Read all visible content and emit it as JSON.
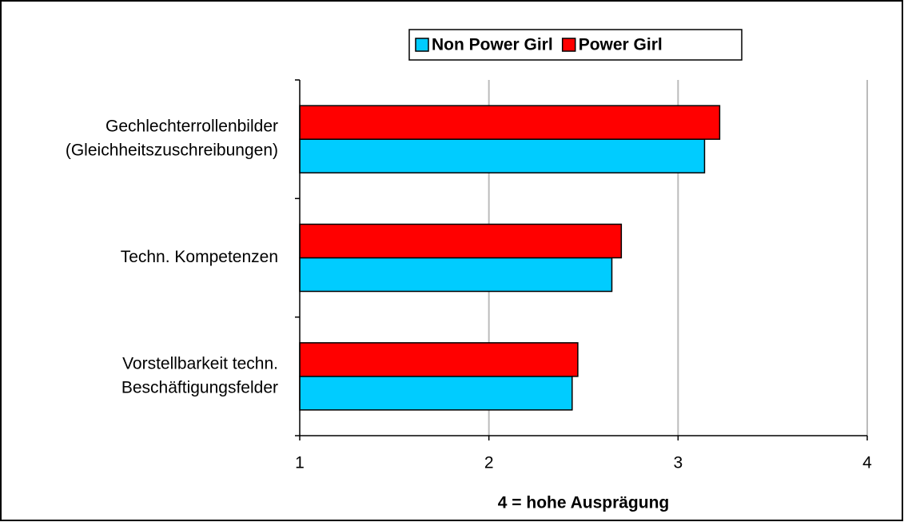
{
  "chart_data": {
    "type": "bar",
    "orientation": "horizontal",
    "xlabel": "4 = hohe Ausprägung",
    "categories": [
      [
        "Gechlechterrollenbilder",
        "(Gleichheitszuschreibungen)"
      ],
      [
        "Techn. Kompetenzen"
      ],
      [
        "Vorstellbarkeit techn.",
        "Beschäftigungsfelder"
      ]
    ],
    "series": [
      {
        "name": "Non Power Girl",
        "color": "#00ccff",
        "values": [
          3.14,
          2.65,
          2.44
        ]
      },
      {
        "name": "Power Girl",
        "color": "#ff0000",
        "values": [
          3.22,
          2.7,
          2.47
        ]
      }
    ],
    "xlim": [
      1,
      4
    ],
    "xticks": [
      1,
      2,
      3,
      4
    ],
    "grid": true,
    "legend": "top"
  }
}
